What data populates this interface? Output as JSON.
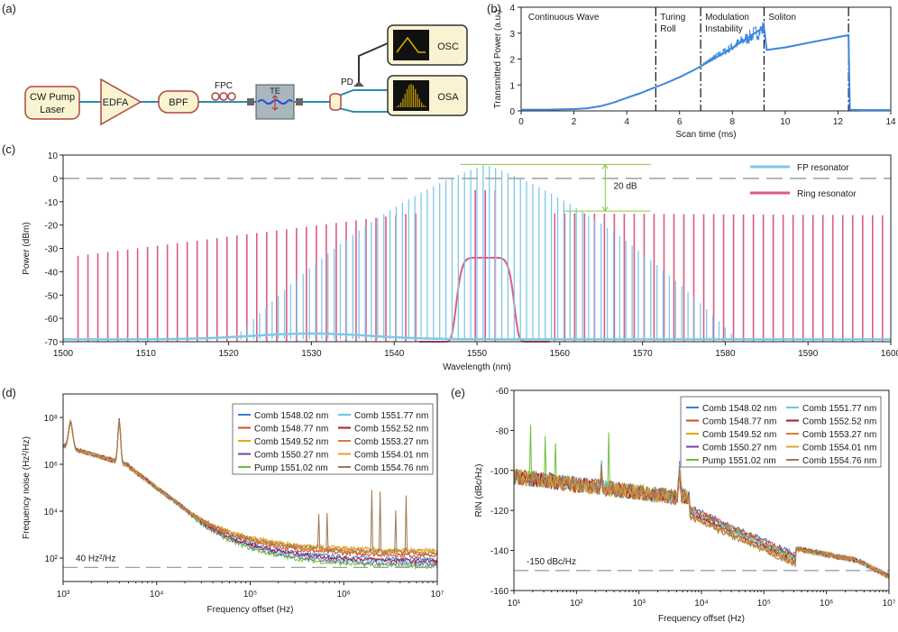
{
  "figure_labels": {
    "a": "(a)",
    "b": "(b)",
    "c": "(c)",
    "d": "(d)",
    "e": "(e)"
  },
  "setup": {
    "laser": [
      "CW Pump",
      "Laser"
    ],
    "edfa": "EDFA",
    "bpf": "BPF",
    "fpc": "FPC",
    "te": "TE",
    "pd": "PD",
    "osc": "OSC",
    "osa": "OSA"
  },
  "colors": {
    "fp": "#7ec8e8",
    "ring": "#dd5b83",
    "trace": "#3c86dc",
    "guide": "#8dc63f",
    "dash": "#9aa0a4",
    "box_fill": "#faf3d2",
    "box_edge": "#b0463f",
    "chip": "#a8b6c0",
    "wave": "#2a4fd0",
    "osa_peak": "#c8a200"
  },
  "chart_data": [
    {
      "id": "b",
      "type": "line",
      "xlabel": "Scan time (ms)",
      "ylabel": "Transmitted Power (a.u.)",
      "xlim": [
        0,
        14
      ],
      "ylim": [
        0,
        4
      ],
      "xticks": [
        0,
        2,
        4,
        6,
        8,
        10,
        12,
        14
      ],
      "yticks": [
        0,
        1,
        2,
        3,
        4
      ],
      "regions": [
        "Continuous Wave",
        "Turing Roll",
        "Modulation Instability",
        "Soliton"
      ],
      "boundaries": [
        5.1,
        6.8,
        9.2,
        12.4
      ],
      "x": [
        0,
        1,
        2,
        2.5,
        3,
        3.5,
        4,
        4.5,
        5,
        5.5,
        6,
        6.5,
        6.8,
        7.2,
        7.8,
        8.4,
        9.0,
        9.2,
        9.3,
        10,
        11,
        12,
        12.4,
        12.45,
        13,
        14
      ],
      "y": [
        0.05,
        0.05,
        0.07,
        0.1,
        0.18,
        0.32,
        0.5,
        0.68,
        0.88,
        1.08,
        1.3,
        1.55,
        1.72,
        1.95,
        2.3,
        2.7,
        3.1,
        3.2,
        2.35,
        2.45,
        2.65,
        2.85,
        2.92,
        0.04,
        0.03,
        0.03
      ]
    },
    {
      "id": "c",
      "type": "line",
      "xlabel": "Wavelength (nm)",
      "ylabel": "Power (dBm)",
      "xlim": [
        1500,
        1600
      ],
      "ylim": [
        -70,
        10
      ],
      "xticks": [
        1500,
        1510,
        1520,
        1530,
        1540,
        1550,
        1560,
        1570,
        1580,
        1590,
        1600
      ],
      "yticks": [
        10,
        0,
        -10,
        -20,
        -30,
        -40,
        -50,
        -60,
        -70
      ],
      "zero_line": 0,
      "annotation": "20 dB",
      "annotation_levels": [
        6,
        -14
      ],
      "series": [
        {
          "name": "FP resonator",
          "center_nm": 1551.0,
          "spacing_nm": 0.75,
          "peak_dbm": 6,
          "floor_dbm": -69
        },
        {
          "name": "Ring resonator",
          "center_nm": 1551.0,
          "spacing_nm": 1.2,
          "left_edge_dbm": -34,
          "top_dbm": -15,
          "floor_dbm": -70,
          "pump_dbm": -5
        }
      ]
    },
    {
      "id": "d",
      "type": "line",
      "xlabel": "Frequency offset (Hz)",
      "ylabel": "Frequency noise (Hz²/Hz)",
      "x_log": [
        3,
        7
      ],
      "y_log": [
        1,
        9
      ],
      "xticks": [
        "10³",
        "10⁴",
        "10⁵",
        "10⁶",
        "10⁷"
      ],
      "yticks": [
        "10²",
        "10⁴",
        "10⁶",
        "10⁸"
      ],
      "reference_label": "40 Hz²/Hz",
      "reference_value": 40,
      "series_names": [
        "Comb 1548.02 nm",
        "Comb 1548.77 nm",
        "Comb 1549.52 nm",
        "Comb 1550.27 nm",
        "Pump 1551.02 nm",
        "Comb 1551.77 nm",
        "Comb 1552.52 nm",
        "Comb 1553.27 nm",
        "Comb 1554.01 nm",
        "Comb 1554.76 nm"
      ],
      "series_colors": [
        "#3b7dd8",
        "#d94a24",
        "#e8a21a",
        "#7a3fa0",
        "#6abf3a",
        "#67c8e6",
        "#a31b2f",
        "#d97a3a",
        "#e0a030",
        "#a07850"
      ],
      "floor_values": [
        80,
        120,
        180,
        50,
        40,
        60,
        70,
        140,
        200,
        160
      ]
    },
    {
      "id": "e",
      "type": "line",
      "xlabel": "Frequency offset (Hz)",
      "ylabel": "RIN (dBc/Hz)",
      "x_log": [
        1,
        7
      ],
      "ylim": [
        -160,
        -60
      ],
      "xticks": [
        "10¹",
        "10²",
        "10³",
        "10⁴",
        "10⁵",
        "10⁶",
        "10⁷"
      ],
      "yticks": [
        -60,
        -80,
        -100,
        -120,
        -140,
        -160
      ],
      "reference_label": "-150 dBc/Hz",
      "reference_value": -150,
      "series_names": [
        "Comb 1548.02 nm",
        "Comb 1548.77 nm",
        "Comb 1549.52 nm",
        "Comb 1550.27 nm",
        "Pump 1551.02 nm",
        "Comb 1551.77 nm",
        "Comb 1552.52 nm",
        "Comb 1553.27 nm",
        "Comb 1554.01 nm",
        "Comb 1554.76 nm"
      ],
      "series_colors": [
        "#3b7dd8",
        "#d94a24",
        "#e8a21a",
        "#7a3fa0",
        "#6abf3a",
        "#67c8e6",
        "#a31b2f",
        "#d97a3a",
        "#e0a030",
        "#a07850"
      ]
    }
  ]
}
